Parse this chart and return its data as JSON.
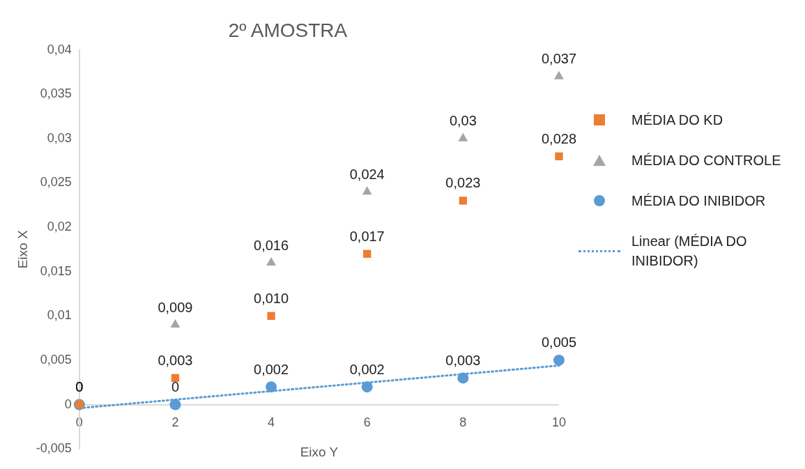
{
  "chart_data": {
    "type": "scatter",
    "title": "2º AMOSTRA",
    "xlabel": "Eixo Y",
    "ylabel": "Eixo X",
    "x": [
      0,
      2,
      4,
      6,
      8,
      10
    ],
    "series": [
      {
        "name": "MÉDIA DO KD",
        "color": "#ed7d31",
        "marker": "square",
        "values": [
          0,
          0.003,
          0.01,
          0.017,
          0.023,
          0.028
        ],
        "value_labels": [
          "0",
          "0,003",
          "0,010",
          "0,017",
          "0,023",
          "0,028"
        ]
      },
      {
        "name": "MÉDIA DO CONTROLE",
        "color": "#a5a5a5",
        "marker": "triangle",
        "values": [
          0,
          0.009,
          0.016,
          0.024,
          0.03,
          0.037
        ],
        "value_labels": [
          "0",
          "0,009",
          "0,016",
          "0,024",
          "0,03",
          "0,037"
        ]
      },
      {
        "name": "MÉDIA DO INIBIDOR",
        "color": "#5b9bd5",
        "marker": "circle",
        "values": [
          0,
          0,
          0.002,
          0.002,
          0.003,
          0.005
        ],
        "value_labels": [
          "0",
          "0",
          "0,002",
          "0,002",
          "0,003",
          "0,005"
        ]
      },
      {
        "name": "Linear (MÉDIA DO INIBIDOR)",
        "type": "line",
        "color": "#5b9bd5",
        "marker": "none",
        "line_style": "dotted",
        "x": [
          0,
          10
        ],
        "values": [
          -0.0004,
          0.0044
        ]
      }
    ],
    "xlim": [
      0,
      10
    ],
    "xticks": [
      0,
      2,
      4,
      6,
      8,
      10
    ],
    "ylim": [
      -0.005,
      0.04
    ],
    "yticks": [
      {
        "value": -0.005,
        "label": "-0,005"
      },
      0,
      {
        "value": 0.005,
        "label": "0,005"
      },
      {
        "value": 0.01,
        "label": "0,01"
      },
      {
        "value": 0.015,
        "label": "0,015"
      },
      {
        "value": 0.02,
        "label": "0,02"
      },
      {
        "value": 0.025,
        "label": "0,025"
      },
      {
        "value": 0.03,
        "label": "0,03"
      },
      {
        "value": 0.035,
        "label": "0,035"
      },
      {
        "value": 0.04,
        "label": "0,04"
      }
    ],
    "legend": "right",
    "grid": false
  }
}
